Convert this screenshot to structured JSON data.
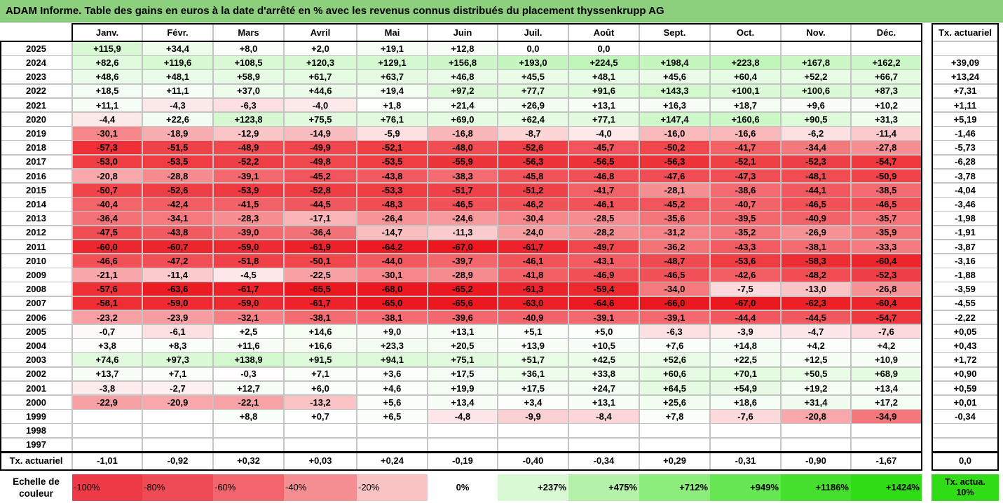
{
  "title": "ADAM Informe. Table des gains en euros à la date d'arrêté en % avec les revenus connus distribués du placement thyssenkrupp AG",
  "chart_data": {
    "type": "heatmap",
    "title": "ADAM Informe. Table des gains en euros à la date d'arrêté en % avec les revenus connus distribués du placement thyssenkrupp AG",
    "months": [
      "Janv.",
      "Févr.",
      "Mars",
      "Avril",
      "Mai",
      "Juin",
      "Juil.",
      "Août",
      "Sept.",
      "Oct.",
      "Nov.",
      "Déc."
    ],
    "rate_header": "Tx. actuariel",
    "rows": [
      {
        "year": "2025",
        "values": [
          "+115,9",
          "+34,4",
          "+8,0",
          "+2,0",
          "+19,1",
          "+12,8",
          "0,0",
          "0,0",
          "",
          "",
          "",
          ""
        ],
        "rate": ""
      },
      {
        "year": "2024",
        "values": [
          "+82,6",
          "+119,6",
          "+108,5",
          "+120,3",
          "+129,1",
          "+156,8",
          "+193,0",
          "+224,5",
          "+198,4",
          "+223,8",
          "+167,8",
          "+162,2"
        ],
        "rate": "+39,09"
      },
      {
        "year": "2023",
        "values": [
          "+48,6",
          "+48,1",
          "+58,9",
          "+61,7",
          "+63,7",
          "+46,8",
          "+45,5",
          "+48,1",
          "+45,6",
          "+60,4",
          "+52,2",
          "+66,7"
        ],
        "rate": "+13,24"
      },
      {
        "year": "2022",
        "values": [
          "+18,5",
          "+11,1",
          "+37,0",
          "+44,6",
          "+19,4",
          "+97,2",
          "+77,7",
          "+91,6",
          "+143,3",
          "+100,1",
          "+100,6",
          "+87,3"
        ],
        "rate": "+7,31"
      },
      {
        "year": "2021",
        "values": [
          "+11,1",
          "-4,3",
          "-6,3",
          "-4,0",
          "+1,8",
          "+21,4",
          "+26,9",
          "+13,1",
          "+16,3",
          "+18,7",
          "+9,6",
          "+10,2"
        ],
        "rate": "+1,11"
      },
      {
        "year": "2020",
        "values": [
          "-4,4",
          "+22,6",
          "+123,8",
          "+75,5",
          "+76,1",
          "+69,0",
          "+62,4",
          "+77,1",
          "+147,4",
          "+160,6",
          "+90,5",
          "+31,3"
        ],
        "rate": "+5,19"
      },
      {
        "year": "2019",
        "values": [
          "-30,1",
          "-18,9",
          "-12,9",
          "-14,9",
          "-5,9",
          "-16,8",
          "-8,7",
          "-4,0",
          "-16,0",
          "-16,6",
          "-6,2",
          "-11,4"
        ],
        "rate": "-1,46"
      },
      {
        "year": "2018",
        "values": [
          "-57,3",
          "-51,5",
          "-48,9",
          "-49,9",
          "-52,1",
          "-48,0",
          "-52,6",
          "-45,7",
          "-50,2",
          "-41,7",
          "-34,4",
          "-27,8"
        ],
        "rate": "-5,73"
      },
      {
        "year": "2017",
        "values": [
          "-53,0",
          "-53,5",
          "-52,2",
          "-49,8",
          "-53,5",
          "-55,9",
          "-56,3",
          "-56,5",
          "-56,3",
          "-52,1",
          "-52,3",
          "-54,7"
        ],
        "rate": "-6,28"
      },
      {
        "year": "2016",
        "values": [
          "-20,8",
          "-28,8",
          "-39,1",
          "-45,2",
          "-43,8",
          "-38,3",
          "-45,8",
          "-46,8",
          "-47,6",
          "-47,3",
          "-48,1",
          "-50,9"
        ],
        "rate": "-3,78"
      },
      {
        "year": "2015",
        "values": [
          "-50,7",
          "-52,6",
          "-53,9",
          "-52,8",
          "-53,3",
          "-51,7",
          "-51,2",
          "-41,7",
          "-28,1",
          "-38,6",
          "-44,1",
          "-38,5"
        ],
        "rate": "-4,04"
      },
      {
        "year": "2014",
        "values": [
          "-40,4",
          "-42,4",
          "-41,5",
          "-44,5",
          "-48,3",
          "-46,5",
          "-46,2",
          "-46,1",
          "-45,2",
          "-40,7",
          "-46,5",
          "-46,5"
        ],
        "rate": "-3,46"
      },
      {
        "year": "2013",
        "values": [
          "-36,4",
          "-34,1",
          "-28,3",
          "-17,1",
          "-26,4",
          "-24,6",
          "-30,4",
          "-28,5",
          "-35,6",
          "-39,5",
          "-40,9",
          "-35,7"
        ],
        "rate": "-1,98"
      },
      {
        "year": "2012",
        "values": [
          "-47,5",
          "-43,8",
          "-39,0",
          "-36,4",
          "-14,7",
          "-11,3",
          "-24,0",
          "-28,2",
          "-31,2",
          "-35,2",
          "-26,9",
          "-35,9"
        ],
        "rate": "-1,91"
      },
      {
        "year": "2011",
        "values": [
          "-60,0",
          "-60,7",
          "-59,0",
          "-61,9",
          "-64,2",
          "-67,0",
          "-61,7",
          "-49,7",
          "-36,2",
          "-43,3",
          "-38,1",
          "-33,3"
        ],
        "rate": "-3,87"
      },
      {
        "year": "2010",
        "values": [
          "-46,6",
          "-47,2",
          "-51,8",
          "-50,1",
          "-44,0",
          "-39,7",
          "-46,1",
          "-43,1",
          "-48,7",
          "-53,6",
          "-58,3",
          "-60,4"
        ],
        "rate": "-3,16"
      },
      {
        "year": "2009",
        "values": [
          "-21,1",
          "-11,4",
          "-4,5",
          "-22,5",
          "-30,1",
          "-28,9",
          "-41,8",
          "-46,9",
          "-46,5",
          "-42,6",
          "-48,2",
          "-52,3"
        ],
        "rate": "-1,88"
      },
      {
        "year": "2008",
        "values": [
          "-57,6",
          "-63,6",
          "-61,7",
          "-65,5",
          "-68,0",
          "-65,2",
          "-61,3",
          "-59,4",
          "-34,0",
          "-7,5",
          "-13,0",
          "-26,8"
        ],
        "rate": "-3,59"
      },
      {
        "year": "2007",
        "values": [
          "-58,1",
          "-59,0",
          "-59,0",
          "-61,7",
          "-65,0",
          "-65,6",
          "-63,0",
          "-64,6",
          "-66,0",
          "-67,0",
          "-62,3",
          "-60,4"
        ],
        "rate": "-4,55"
      },
      {
        "year": "2006",
        "values": [
          "-23,2",
          "-23,9",
          "-32,1",
          "-38,1",
          "-38,1",
          "-39,6",
          "-40,9",
          "-39,1",
          "-39,1",
          "-44,4",
          "-44,5",
          "-54,7"
        ],
        "rate": "-2,22"
      },
      {
        "year": "2005",
        "values": [
          "-0,7",
          "-6,1",
          "+2,5",
          "+14,6",
          "+9,0",
          "+13,1",
          "+5,1",
          "+5,0",
          "-6,3",
          "-3,9",
          "-4,7",
          "-7,6"
        ],
        "rate": "+0,05"
      },
      {
        "year": "2004",
        "values": [
          "+3,8",
          "+8,3",
          "+11,6",
          "+16,6",
          "+23,3",
          "+20,5",
          "+13,9",
          "+10,5",
          "+7,6",
          "+14,8",
          "+4,2",
          "+4,2"
        ],
        "rate": "+0,43"
      },
      {
        "year": "2003",
        "values": [
          "+74,6",
          "+97,3",
          "+138,9",
          "+91,5",
          "+94,1",
          "+75,1",
          "+51,7",
          "+42,5",
          "+52,6",
          "+22,5",
          "+12,5",
          "+10,9"
        ],
        "rate": "+1,72"
      },
      {
        "year": "2002",
        "values": [
          "+13,7",
          "+7,1",
          "-0,3",
          "+7,1",
          "+3,6",
          "+17,5",
          "+36,1",
          "+33,8",
          "+60,6",
          "+70,1",
          "+50,5",
          "+68,9"
        ],
        "rate": "+0,90"
      },
      {
        "year": "2001",
        "values": [
          "-3,8",
          "-2,7",
          "+12,7",
          "+6,0",
          "+4,6",
          "+19,9",
          "+17,5",
          "+24,7",
          "+64,5",
          "+54,9",
          "+19,2",
          "+13,4"
        ],
        "rate": "+0,59"
      },
      {
        "year": "2000",
        "values": [
          "-22,9",
          "-20,9",
          "-22,1",
          "-13,2",
          "+5,6",
          "+13,4",
          "+3,4",
          "+13,1",
          "+25,6",
          "+18,6",
          "+31,4",
          "+17,2"
        ],
        "rate": "+0,01"
      },
      {
        "year": "1999",
        "values": [
          "",
          "",
          "+8,8",
          "+0,7",
          "+6,5",
          "-4,8",
          "-9,9",
          "-8,4",
          "+7,8",
          "-7,6",
          "-20,8",
          "-34,9"
        ],
        "rate": "-0,34"
      },
      {
        "year": "1998",
        "values": [
          "",
          "",
          "",
          "",
          "",
          "",
          "",
          "",
          "",
          "",
          "",
          ""
        ],
        "rate": ""
      },
      {
        "year": "1997",
        "values": [
          "",
          "",
          "",
          "",
          "",
          "",
          "",
          "",
          "",
          "",
          "",
          ""
        ],
        "rate": ""
      }
    ],
    "summary": {
      "label": "Tx. actuariel",
      "values": [
        "-1,01",
        "-0,92",
        "+0,32",
        "+0,03",
        "+0,24",
        "-0,19",
        "-0,40",
        "-0,34",
        "+0,29",
        "-0,31",
        "-0,90",
        "-1,67"
      ],
      "rate": "0,0"
    },
    "scale": {
      "label": "Echelle de couleur",
      "items": [
        {
          "label": "-100%",
          "color": "#ed3a46"
        },
        {
          "label": "-80%",
          "color": "#ef4b55"
        },
        {
          "label": "-60%",
          "color": "#f2656c"
        },
        {
          "label": "-40%",
          "color": "#f58e92"
        },
        {
          "label": "-20%",
          "color": "#f9c3c4"
        },
        {
          "label": "0%",
          "color": "#ffffff"
        },
        {
          "label": "+237%",
          "color": "#d9f8d4"
        },
        {
          "label": "+475%",
          "color": "#b4f2a9"
        },
        {
          "label": "+712%",
          "color": "#8cec7c"
        },
        {
          "label": "+949%",
          "color": "#66e652"
        },
        {
          "label": "+1186%",
          "color": "#45e02d"
        },
        {
          "label": "+1424%",
          "color": "#2fdc15"
        }
      ],
      "rate_label": "Tx. actua. 10%",
      "rate_color": "#2fdc15"
    }
  }
}
